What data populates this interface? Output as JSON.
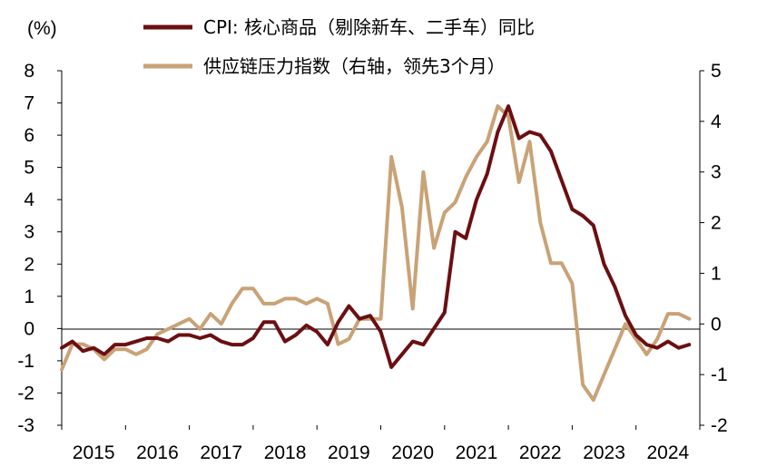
{
  "chart_data": {
    "type": "line",
    "ylabel": "(%)",
    "x_ticks": [
      "2015",
      "2016",
      "2017",
      "2018",
      "2019",
      "2020",
      "2021",
      "2022",
      "2023",
      "2024"
    ],
    "xlim": [
      "2015-01",
      "2024-12"
    ],
    "left_axis": {
      "ylim": [
        -3,
        8
      ],
      "ticks": [
        8,
        7,
        6,
        5,
        4,
        3,
        2,
        1,
        0,
        -1,
        -2,
        -3
      ],
      "negative_tick_color": "#e00000"
    },
    "right_axis": {
      "ylim": [
        -2,
        5
      ],
      "ticks": [
        5,
        4,
        3,
        2,
        1,
        0,
        -1,
        -2
      ]
    },
    "legend_position": "top-center",
    "series": [
      {
        "name": "CPI: 核心商品（剔除新车、二手车）同比",
        "axis": "left",
        "color": "#6b0f12",
        "x": [
          "2015-01",
          "2015-03",
          "2015-05",
          "2015-07",
          "2015-09",
          "2015-11",
          "2016-01",
          "2016-03",
          "2016-05",
          "2016-07",
          "2016-09",
          "2016-11",
          "2017-01",
          "2017-03",
          "2017-05",
          "2017-07",
          "2017-09",
          "2017-11",
          "2018-01",
          "2018-03",
          "2018-05",
          "2018-07",
          "2018-09",
          "2018-11",
          "2019-01",
          "2019-03",
          "2019-05",
          "2019-07",
          "2019-09",
          "2019-11",
          "2020-01",
          "2020-03",
          "2020-05",
          "2020-07",
          "2020-09",
          "2020-11",
          "2021-01",
          "2021-03",
          "2021-05",
          "2021-07",
          "2021-09",
          "2021-11",
          "2022-01",
          "2022-03",
          "2022-05",
          "2022-07",
          "2022-09",
          "2022-11",
          "2023-01",
          "2023-03",
          "2023-05",
          "2023-07",
          "2023-09",
          "2023-11",
          "2024-01",
          "2024-03",
          "2024-05",
          "2024-07",
          "2024-09",
          "2024-11"
        ],
        "values": [
          -0.6,
          -0.4,
          -0.7,
          -0.6,
          -0.8,
          -0.5,
          -0.5,
          -0.4,
          -0.3,
          -0.3,
          -0.4,
          -0.2,
          -0.2,
          -0.3,
          -0.2,
          -0.4,
          -0.5,
          -0.5,
          -0.3,
          0.2,
          0.2,
          -0.4,
          -0.2,
          0.1,
          -0.1,
          -0.5,
          0.2,
          0.7,
          0.3,
          0.4,
          -0.1,
          -1.2,
          -0.8,
          -0.4,
          -0.5,
          0.0,
          0.5,
          3.0,
          2.8,
          4.0,
          4.8,
          6.1,
          6.9,
          5.9,
          6.1,
          6.0,
          5.5,
          4.6,
          3.7,
          3.5,
          3.2,
          2.0,
          1.3,
          0.4,
          -0.2,
          -0.5,
          -0.6,
          -0.4,
          -0.6,
          -0.5
        ]
      },
      {
        "name": "供应链压力指数（右轴，领先3个月）",
        "axis": "right",
        "color": "#c9a276",
        "x": [
          "2015-01",
          "2015-03",
          "2015-05",
          "2015-07",
          "2015-09",
          "2015-11",
          "2016-01",
          "2016-03",
          "2016-05",
          "2016-07",
          "2016-09",
          "2016-11",
          "2017-01",
          "2017-03",
          "2017-05",
          "2017-07",
          "2017-09",
          "2017-11",
          "2018-01",
          "2018-03",
          "2018-05",
          "2018-07",
          "2018-09",
          "2018-11",
          "2019-01",
          "2019-03",
          "2019-05",
          "2019-07",
          "2019-09",
          "2019-11",
          "2020-01",
          "2020-03",
          "2020-05",
          "2020-07",
          "2020-09",
          "2020-11",
          "2021-01",
          "2021-03",
          "2021-05",
          "2021-07",
          "2021-09",
          "2021-11",
          "2022-01",
          "2022-03",
          "2022-05",
          "2022-07",
          "2022-09",
          "2022-11",
          "2023-01",
          "2023-03",
          "2023-05",
          "2023-07",
          "2023-09",
          "2023-11",
          "2024-01",
          "2024-03",
          "2024-05",
          "2024-07",
          "2024-09",
          "2024-11"
        ],
        "values": [
          -0.9,
          -0.4,
          -0.4,
          -0.5,
          -0.7,
          -0.5,
          -0.5,
          -0.6,
          -0.5,
          -0.2,
          -0.1,
          0.0,
          0.1,
          -0.1,
          0.2,
          0.0,
          0.4,
          0.7,
          0.7,
          0.4,
          0.4,
          0.5,
          0.5,
          0.4,
          0.5,
          0.4,
          -0.4,
          -0.3,
          0.1,
          0.1,
          0.1,
          3.3,
          2.3,
          0.3,
          3.0,
          1.5,
          2.2,
          2.4,
          2.9,
          3.3,
          3.6,
          4.3,
          4.1,
          2.8,
          3.6,
          2.0,
          1.2,
          1.2,
          0.8,
          -1.2,
          -1.5,
          -1.0,
          -0.5,
          0.0,
          -0.3,
          -0.6,
          -0.3,
          0.2,
          0.2,
          0.1
        ]
      }
    ],
    "grid": false
  }
}
